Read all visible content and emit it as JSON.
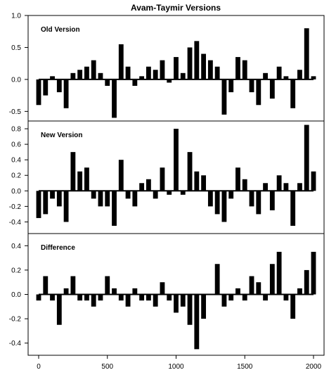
{
  "chart_data": [
    {
      "type": "bar",
      "title": "Avam-Taymir Versions",
      "panel_label": "Old Version",
      "xlim": [
        0,
        2000
      ],
      "ylim": [
        -0.65,
        1.0
      ],
      "yticks": [
        -0.5,
        0.0,
        0.5,
        1.0
      ],
      "ytick_labels": [
        "-0.5",
        "0.0",
        "0.5",
        "1.0"
      ],
      "x": [
        0,
        50,
        100,
        150,
        200,
        250,
        300,
        350,
        400,
        450,
        500,
        550,
        600,
        650,
        700,
        750,
        800,
        850,
        900,
        950,
        1000,
        1050,
        1100,
        1150,
        1200,
        1250,
        1300,
        1350,
        1400,
        1450,
        1500,
        1550,
        1600,
        1650,
        1700,
        1750,
        1800,
        1850,
        1900,
        1950,
        2000
      ],
      "values": [
        -0.4,
        -0.25,
        0.05,
        -0.2,
        -0.45,
        0.1,
        0.15,
        0.2,
        0.3,
        0.1,
        -0.1,
        -0.6,
        0.55,
        0.2,
        -0.1,
        0.05,
        0.2,
        0.15,
        0.3,
        -0.05,
        0.35,
        0.1,
        0.5,
        0.6,
        0.4,
        0.3,
        0.2,
        -0.55,
        -0.2,
        0.35,
        0.3,
        -0.2,
        -0.4,
        0.1,
        -0.3,
        0.2,
        0.05,
        -0.45,
        0.15,
        0.8,
        0.05
      ]
    },
    {
      "type": "bar",
      "panel_label": "New Version",
      "xlim": [
        0,
        2000
      ],
      "ylim": [
        -0.55,
        0.9
      ],
      "yticks": [
        -0.4,
        -0.2,
        0.0,
        0.2,
        0.4,
        0.6,
        0.8
      ],
      "ytick_labels": [
        "-0.4",
        "-0.2",
        "0.0",
        "0.2",
        "0.4",
        "0.6",
        "0.8"
      ],
      "x": [
        0,
        50,
        100,
        150,
        200,
        250,
        300,
        350,
        400,
        450,
        500,
        550,
        600,
        650,
        700,
        750,
        800,
        850,
        900,
        950,
        1000,
        1050,
        1100,
        1150,
        1200,
        1250,
        1300,
        1350,
        1400,
        1450,
        1500,
        1550,
        1600,
        1650,
        1700,
        1750,
        1800,
        1850,
        1900,
        1950,
        2000
      ],
      "values": [
        -0.35,
        -0.3,
        -0.1,
        -0.2,
        -0.4,
        0.5,
        0.25,
        0.3,
        -0.1,
        -0.2,
        -0.2,
        -0.45,
        0.4,
        -0.1,
        -0.2,
        0.1,
        0.15,
        -0.1,
        0.3,
        -0.05,
        0.8,
        -0.05,
        0.5,
        0.25,
        0.2,
        -0.2,
        -0.3,
        -0.4,
        -0.1,
        0.3,
        0.15,
        -0.2,
        -0.3,
        0.1,
        -0.25,
        0.2,
        0.1,
        -0.45,
        0.1,
        0.85,
        0.25
      ]
    },
    {
      "type": "bar",
      "panel_label": "Difference",
      "xlim": [
        0,
        2000
      ],
      "ylim": [
        -0.5,
        0.5
      ],
      "yticks": [
        -0.4,
        -0.2,
        0.0,
        0.2,
        0.4
      ],
      "ytick_labels": [
        "-0.4",
        "-0.2",
        "0.0",
        "0.2",
        "0.4"
      ],
      "xticks": [
        0,
        500,
        1000,
        1500,
        2000
      ],
      "xtick_labels": [
        "0",
        "500",
        "1000",
        "1500",
        "2000"
      ],
      "x": [
        0,
        50,
        100,
        150,
        200,
        250,
        300,
        350,
        400,
        450,
        500,
        550,
        600,
        650,
        700,
        750,
        800,
        850,
        900,
        950,
        1000,
        1050,
        1100,
        1150,
        1200,
        1250,
        1300,
        1350,
        1400,
        1450,
        1500,
        1550,
        1600,
        1650,
        1700,
        1750,
        1800,
        1850,
        1900,
        1950,
        2000
      ],
      "values": [
        -0.05,
        0.15,
        -0.05,
        -0.25,
        0.05,
        0.15,
        -0.05,
        -0.05,
        -0.1,
        -0.05,
        0.15,
        0.05,
        -0.05,
        -0.1,
        0.05,
        -0.05,
        -0.05,
        -0.1,
        0.1,
        -0.05,
        -0.15,
        -0.1,
        -0.25,
        -0.45,
        -0.2,
        0.0,
        0.25,
        -0.1,
        -0.05,
        0.05,
        -0.05,
        0.15,
        0.1,
        -0.05,
        0.25,
        0.35,
        -0.05,
        -0.2,
        0.05,
        0.2,
        0.35
      ]
    }
  ]
}
